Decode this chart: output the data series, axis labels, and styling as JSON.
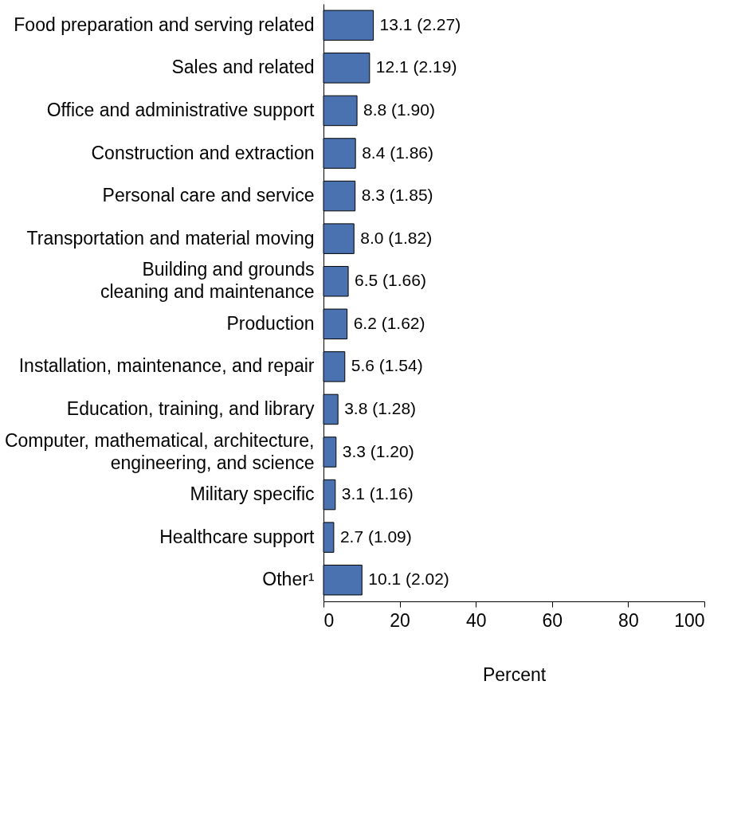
{
  "chart_data": {
    "type": "bar",
    "orientation": "horizontal",
    "xlabel": "Percent",
    "categories": [
      "Food preparation and serving related",
      "Sales and related",
      "Office and administrative support",
      "Construction and extraction",
      "Personal care and service",
      "Transportation and material moving",
      "Building and grounds\ncleaning and maintenance",
      "Production",
      "Installation, maintenance, and repair",
      "Education, training, and library",
      "Computer, mathematical, architecture,\nengineering, and science",
      "Military specific",
      "Healthcare support",
      "Other¹"
    ],
    "values": [
      13.1,
      12.1,
      8.8,
      8.4,
      8.3,
      8.0,
      6.5,
      6.2,
      5.6,
      3.8,
      3.3,
      3.1,
      2.7,
      10.1
    ],
    "value_labels": [
      "13.1 (2.27)",
      "12.1 (2.19)",
      "8.8 (1.90)",
      "8.4 (1.86)",
      "8.3 (1.85)",
      "8.0 (1.82)",
      "6.5 (1.66)",
      "6.2 (1.62)",
      "5.6 (1.54)",
      "3.8 (1.28)",
      "3.3 (1.20)",
      "3.1 (1.16)",
      "2.7 (1.09)",
      "10.1 (2.02)"
    ],
    "color": "#4a72b0",
    "xlim": [
      0,
      100
    ],
    "xticks": [
      0,
      20,
      40,
      60,
      80,
      100
    ],
    "grid": false
  }
}
